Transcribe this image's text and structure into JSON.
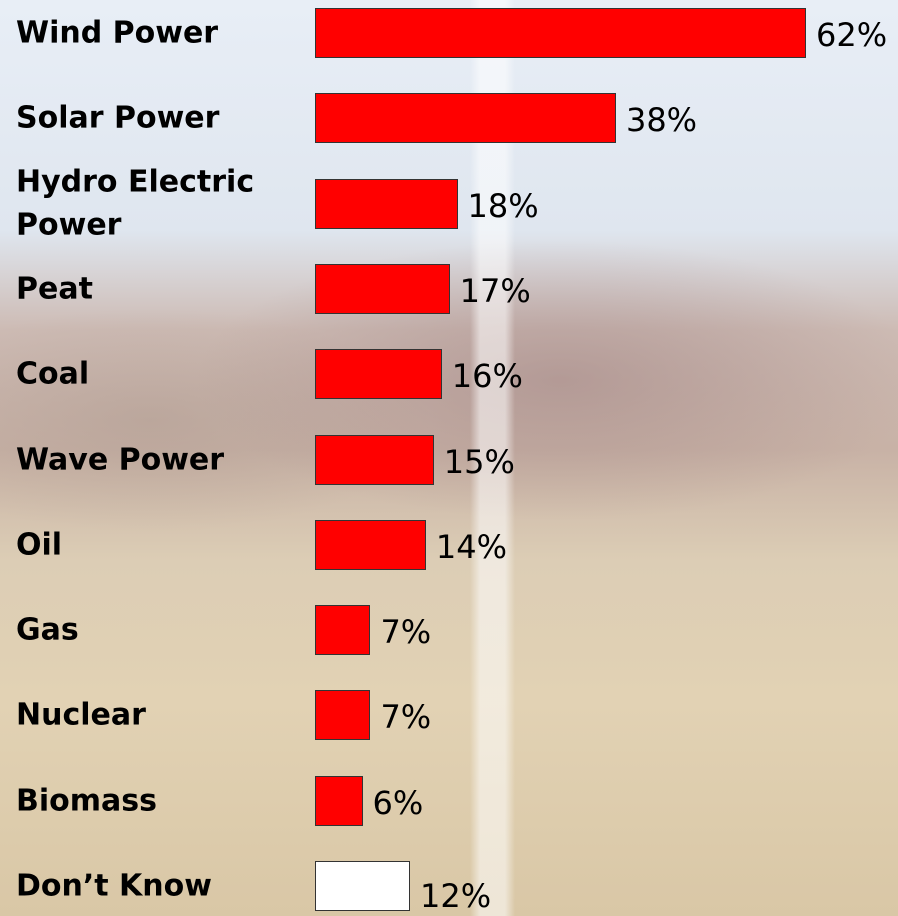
{
  "chart_data": {
    "type": "bar",
    "orientation": "horizontal",
    "categories": [
      "Wind Power",
      "Solar Power",
      "Hydro Electric Power",
      "Peat",
      "Coal",
      "Wave Power",
      "Oil",
      "Gas",
      "Nuclear",
      "Biomass",
      "Don’t Know"
    ],
    "values": [
      62,
      38,
      18,
      17,
      16,
      15,
      14,
      7,
      7,
      6,
      12
    ],
    "value_labels": [
      "62%",
      "38%",
      "18%",
      "17%",
      "16%",
      "15%",
      "14%",
      "7%",
      "7%",
      "6%",
      "12%"
    ],
    "colors": [
      "#ff0000",
      "#ff0000",
      "#ff0000",
      "#ff0000",
      "#ff0000",
      "#ff0000",
      "#ff0000",
      "#ff0000",
      "#ff0000",
      "#ff0000",
      "#ffffff"
    ]
  }
}
